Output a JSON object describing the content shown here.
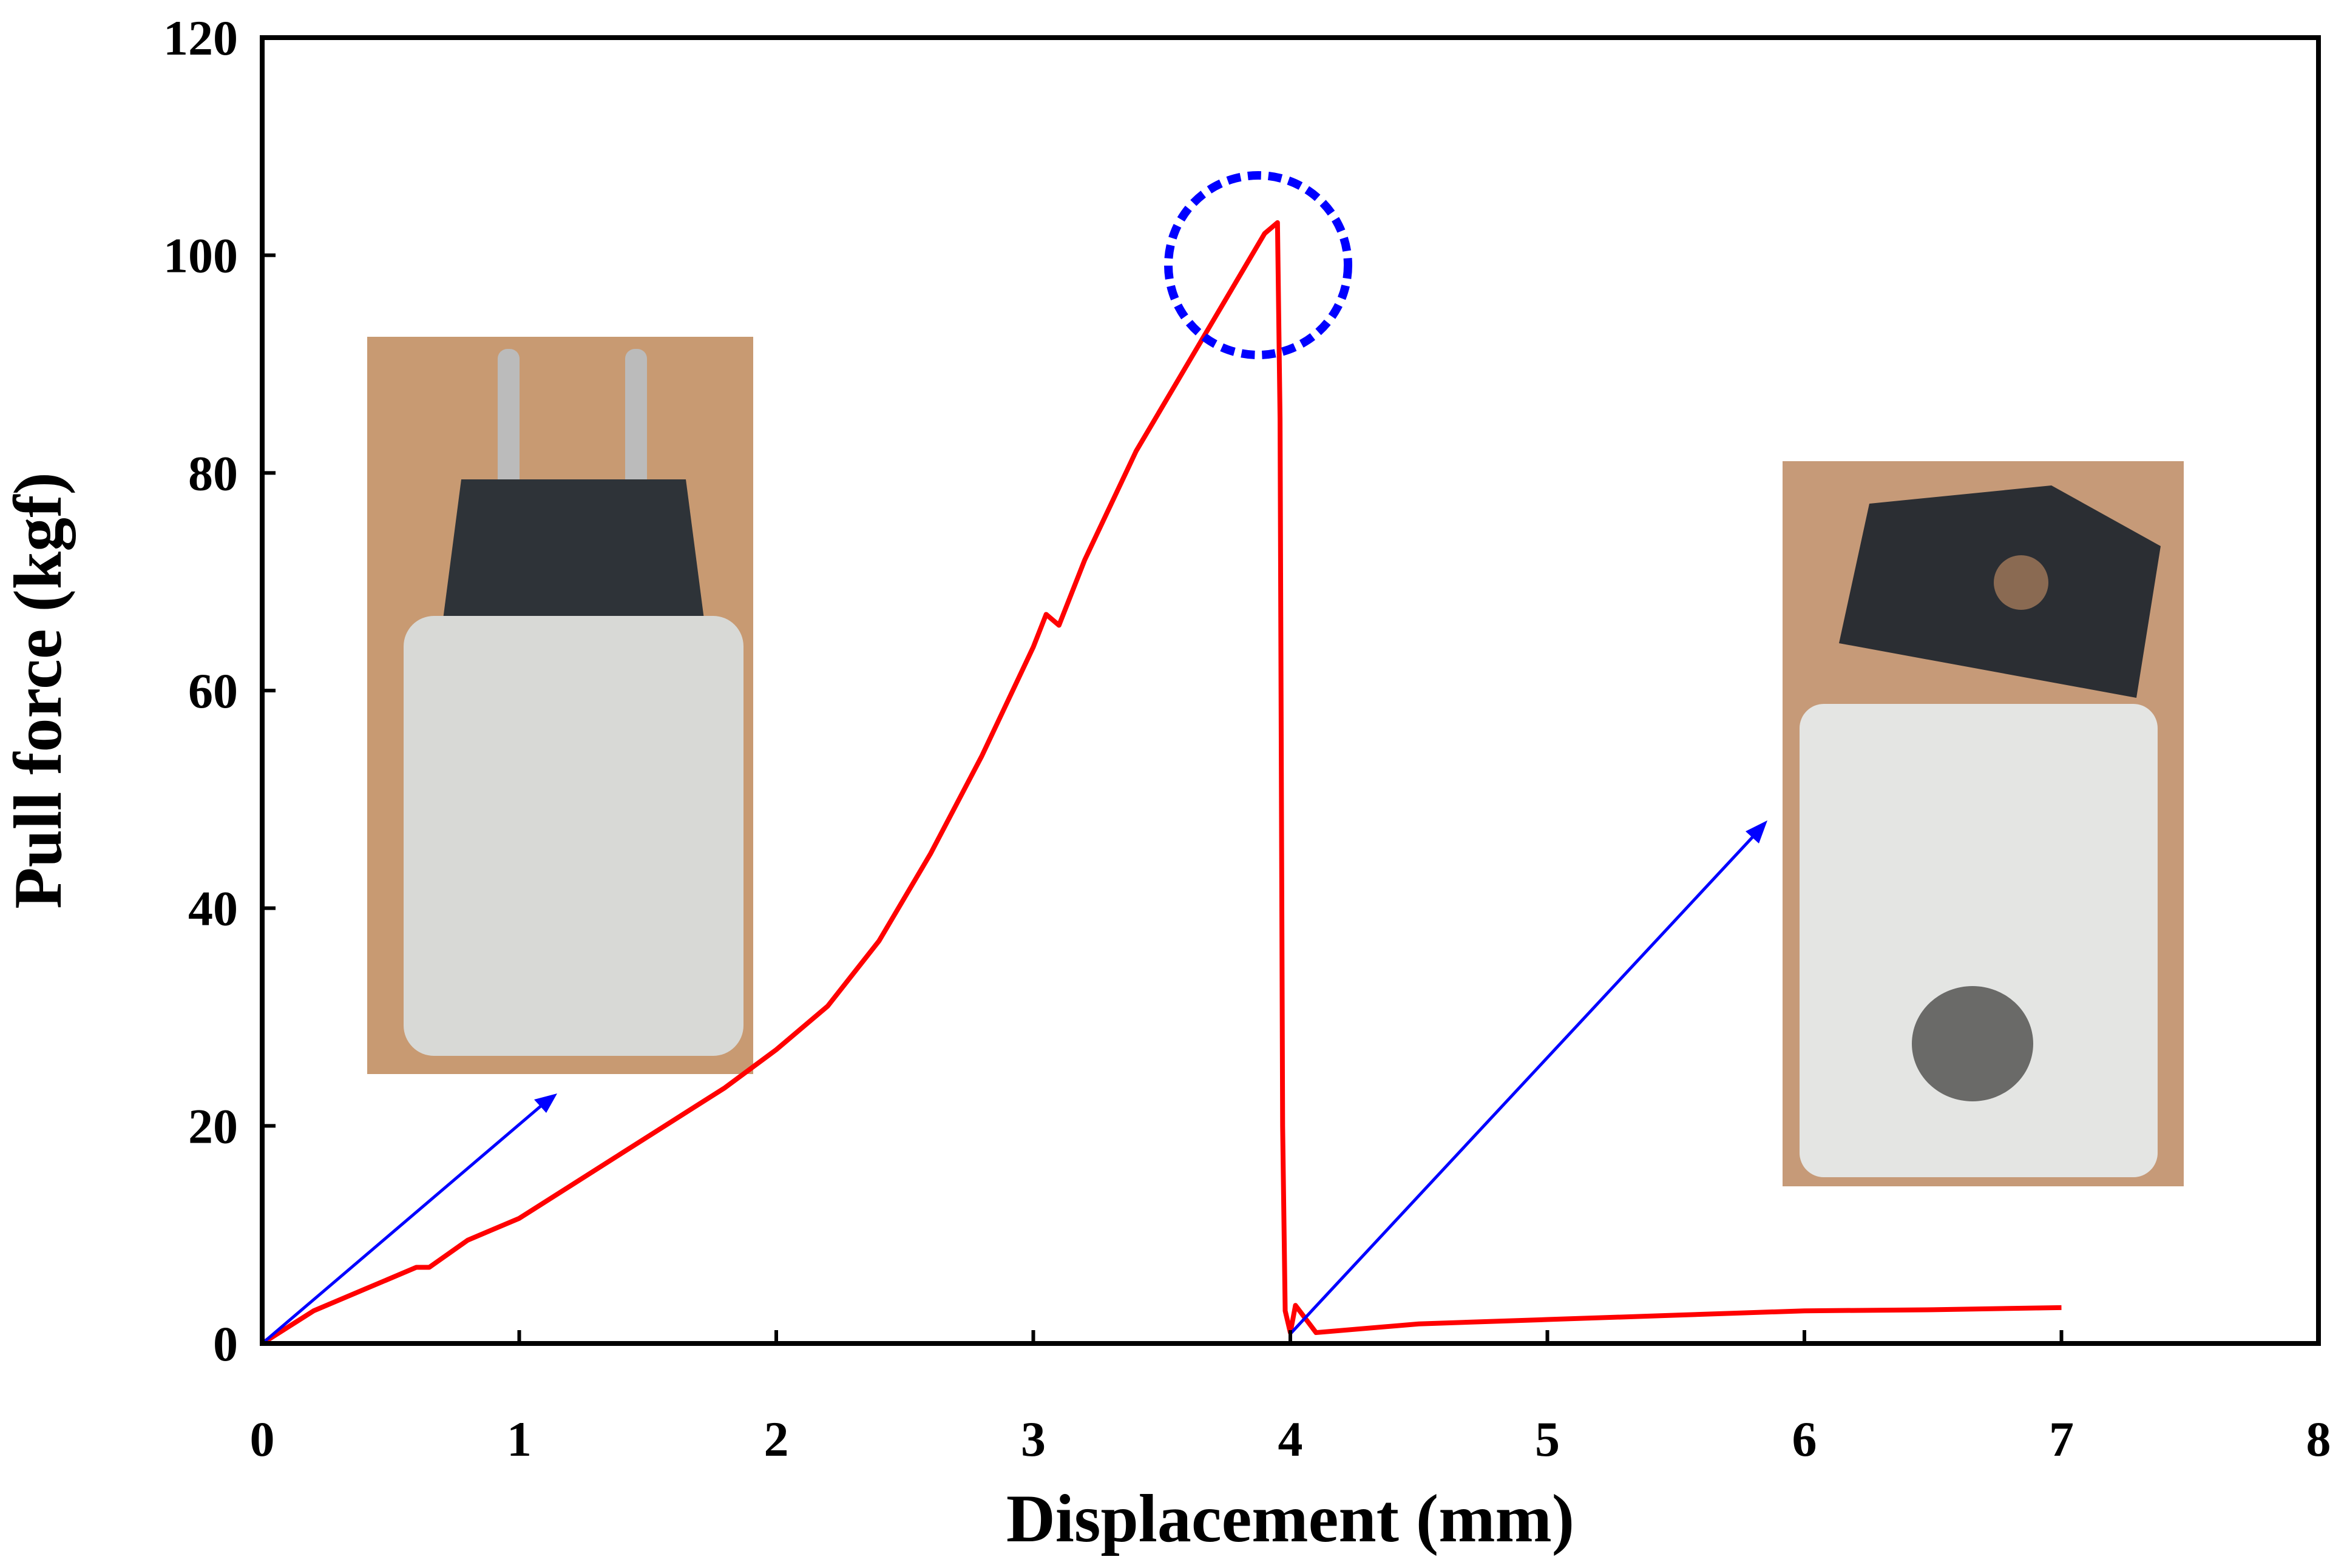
{
  "chart_data": {
    "type": "line",
    "x_label": "Displacement (mm)",
    "y_label": "Pull force (kgf)",
    "xlim": [
      0,
      8
    ],
    "ylim": [
      0,
      120
    ],
    "xticks": [
      0,
      1,
      2,
      3,
      4,
      5,
      6,
      7,
      8
    ],
    "yticks": [
      0,
      20,
      40,
      60,
      80,
      100,
      120
    ],
    "series": [
      {
        "color": "#ff0000",
        "x": [
          0,
          0.2,
          0.4,
          0.6,
          0.65,
          0.8,
          1.0,
          1.2,
          1.4,
          1.6,
          1.8,
          2.0,
          2.2,
          2.4,
          2.6,
          2.8,
          3.0,
          3.05,
          3.1,
          3.2,
          3.4,
          3.6,
          3.7,
          3.8,
          3.9,
          3.95,
          3.96,
          3.97,
          3.98,
          4.0,
          4.02,
          4.1,
          4.5,
          5.0,
          5.5,
          6.0,
          6.5,
          7.0
        ],
        "values": [
          0,
          3,
          5,
          7,
          7,
          9.5,
          11.5,
          14.5,
          17.5,
          20.5,
          23.5,
          27,
          31,
          37,
          45,
          54,
          64,
          67,
          66,
          72,
          82,
          90,
          94,
          98,
          102,
          103,
          85,
          20,
          3,
          1,
          3.5,
          1,
          1.8,
          2.2,
          2.6,
          3,
          3.1,
          3.3
        ]
      }
    ]
  }
}
